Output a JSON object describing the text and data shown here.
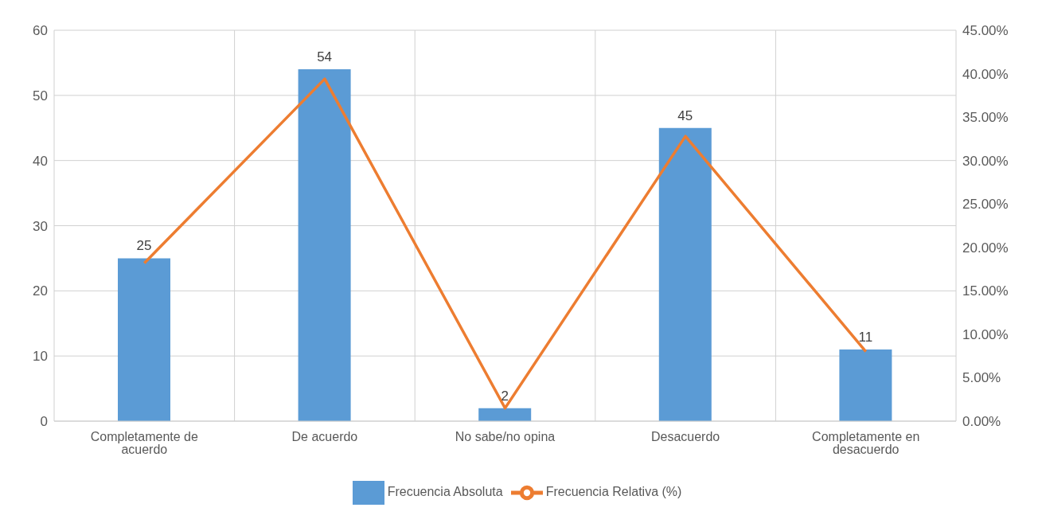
{
  "chart_data": {
    "type": "bar",
    "categories": [
      "Completamente de acuerdo",
      "De acuerdo",
      "No sabe/no opina",
      "Desacuerdo",
      "Completamente en desacuerdo"
    ],
    "series": [
      {
        "name": "Frecuencia Absoluta",
        "color": "#5b9bd5",
        "values": [
          25,
          54,
          2,
          45,
          11
        ],
        "value_labels": [
          "25",
          "54",
          "2",
          "45",
          "11"
        ]
      },
      {
        "name": "Frecuencia Relativa (%)",
        "type": "line",
        "axis": "y2",
        "color": "#ed7d31",
        "marker": "none",
        "values": [
          18.2,
          39.4,
          1.5,
          32.8,
          8.0
        ]
      }
    ],
    "ylim": [
      0,
      60
    ],
    "yticks": [
      0,
      10,
      20,
      30,
      40,
      50,
      60
    ],
    "y2lim": [
      0,
      45
    ],
    "y2ticks": [
      {
        "value": 0,
        "label": "0.00%"
      },
      {
        "value": 5,
        "label": "5.00%"
      },
      {
        "value": 10,
        "label": "10.00%"
      },
      {
        "value": 15,
        "label": "15.00%"
      },
      {
        "value": 20,
        "label": "20.00%"
      },
      {
        "value": 25,
        "label": "25.00%"
      },
      {
        "value": 30,
        "label": "30.00%"
      },
      {
        "value": 35,
        "label": "35.00%"
      },
      {
        "value": 40,
        "label": "40.00%"
      },
      {
        "value": 45,
        "label": "45.00%"
      }
    ],
    "grid": true,
    "legend": "bottom"
  }
}
